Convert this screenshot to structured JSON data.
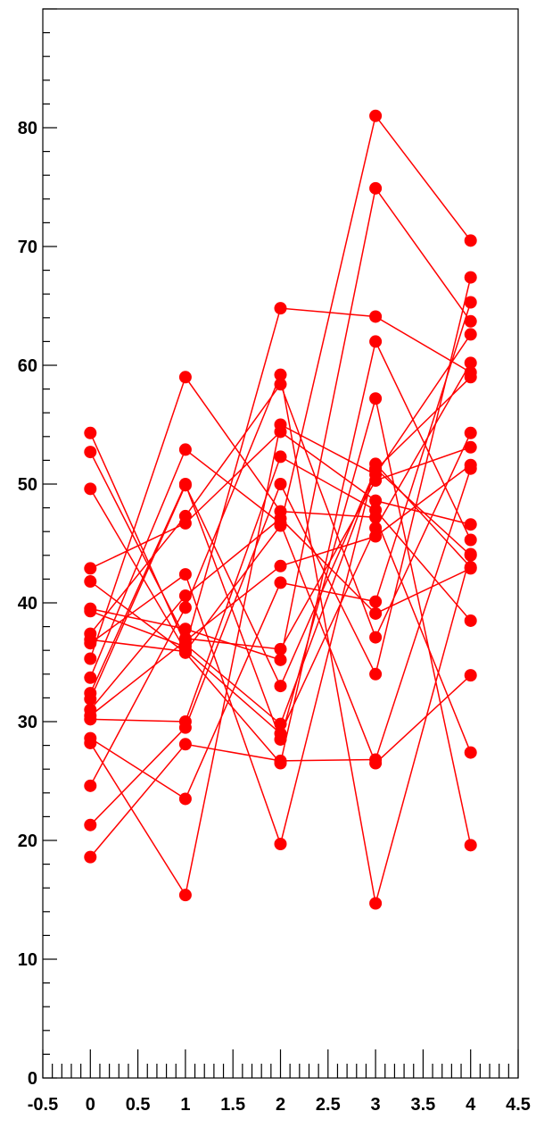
{
  "colors": {
    "series": "#ff0000",
    "axis": "#000000",
    "background": "#ffffff"
  },
  "chart_data": {
    "type": "line",
    "title": "",
    "xlabel": "",
    "ylabel": "",
    "xlim": [
      -0.5,
      4.5
    ],
    "ylim": [
      0,
      90
    ],
    "grid": false,
    "legend": "none",
    "marker": "circle",
    "x": [
      0,
      1,
      2,
      3,
      4
    ],
    "x_ticks": [
      {
        "value": -0.5,
        "label": "-0.5"
      },
      {
        "value": 0,
        "label": "0"
      },
      {
        "value": 0.5,
        "label": "0.5"
      },
      {
        "value": 1,
        "label": "1"
      },
      {
        "value": 1.5,
        "label": "1.5"
      },
      {
        "value": 2,
        "label": "2"
      },
      {
        "value": 2.5,
        "label": "2.5"
      },
      {
        "value": 3,
        "label": "3"
      },
      {
        "value": 3.5,
        "label": "3.5"
      },
      {
        "value": 4,
        "label": "4"
      },
      {
        "value": 4.5,
        "label": "4.5"
      }
    ],
    "y_ticks": [
      {
        "value": 0,
        "label": "0"
      },
      {
        "value": 10,
        "label": "10"
      },
      {
        "value": 20,
        "label": "20"
      },
      {
        "value": 30,
        "label": "30"
      },
      {
        "value": 40,
        "label": "40"
      },
      {
        "value": 50,
        "label": "50"
      },
      {
        "value": 60,
        "label": "60"
      },
      {
        "value": 70,
        "label": "70"
      },
      {
        "value": 80,
        "label": "80"
      }
    ],
    "series": [
      {
        "values": [
          54.3,
          36.5,
          29.8,
          51.3,
          44.0
        ]
      },
      {
        "values": [
          52.7,
          37.0,
          36.1,
          50.3,
          53.1
        ]
      },
      {
        "values": [
          49.6,
          36.0,
          29.0,
          46.3,
          60.2
        ]
      },
      {
        "values": [
          42.9,
          46.7,
          54.4,
          48.6,
          46.6
        ]
      },
      {
        "values": [
          41.8,
          35.8,
          26.5,
          62.0,
          45.3
        ]
      },
      {
        "values": [
          39.5,
          37.8,
          35.2,
          74.9,
          63.7
        ]
      },
      {
        "values": [
          39.3,
          36.3,
          64.8,
          64.1,
          59.4
        ]
      },
      {
        "values": [
          37.4,
          47.3,
          58.4,
          37.1,
          54.3
        ]
      },
      {
        "values": [
          36.9,
          35.9,
          46.5,
          81.0,
          70.5
        ]
      },
      {
        "values": [
          36.6,
          42.4,
          19.7,
          51.7,
          43.0
        ]
      },
      {
        "values": [
          35.3,
          59.0,
          47.7,
          47.2,
          27.4
        ]
      },
      {
        "values": [
          33.7,
          52.9,
          46.7,
          26.5,
          33.9
        ]
      },
      {
        "values": [
          32.4,
          50.0,
          28.5,
          57.2,
          19.6
        ]
      },
      {
        "values": [
          31.9,
          49.9,
          33.0,
          51.2,
          59.0
        ]
      },
      {
        "values": [
          31.0,
          40.6,
          47.1,
          39.1,
          42.9
        ]
      },
      {
        "values": [
          30.5,
          36.8,
          43.1,
          45.6,
          51.6
        ]
      },
      {
        "values": [
          30.2,
          30.0,
          52.3,
          47.8,
          38.5
        ]
      },
      {
        "values": [
          28.6,
          23.5,
          41.7,
          40.1,
          65.3
        ]
      },
      {
        "values": [
          28.2,
          15.4,
          55.0,
          50.8,
          62.6
        ]
      },
      {
        "values": [
          24.6,
          39.6,
          59.2,
          14.7,
          44.1
        ]
      },
      {
        "values": [
          21.3,
          29.5,
          50.0,
          34.0,
          67.4
        ]
      },
      {
        "values": [
          18.6,
          28.1,
          26.7,
          26.8,
          51.3
        ]
      }
    ]
  }
}
